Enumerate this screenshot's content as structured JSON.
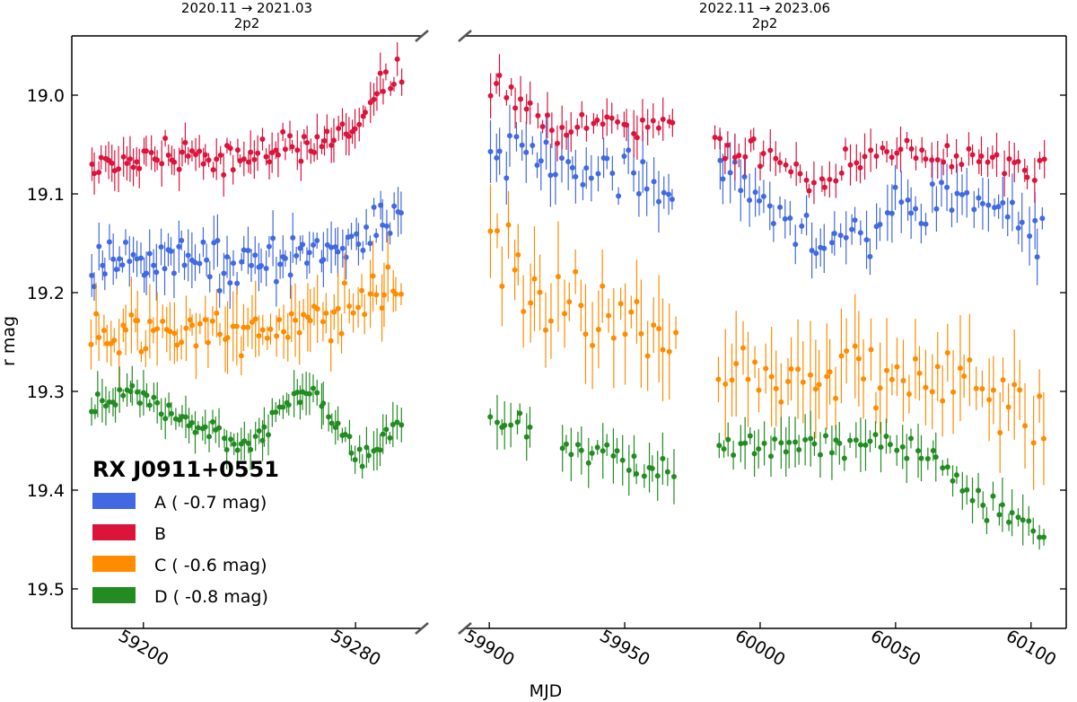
{
  "chart_data": {
    "type": "scatter",
    "ylabel": "r mag",
    "xlabel": "MJD",
    "ylim": [
      19.54,
      18.94
    ],
    "yticks": [
      19.0,
      19.1,
      19.2,
      19.3,
      19.4,
      19.5
    ],
    "ytick_labels": [
      "19.0",
      "19.1",
      "19.2",
      "19.3",
      "19.4",
      "19.5"
    ],
    "legend": {
      "title": "RX J0911+0551",
      "position": "lower-left",
      "entries": [
        {
          "label": "A ( -0.7 mag)",
          "color": "#4169e1"
        },
        {
          "label": "B",
          "color": "#dc143c"
        },
        {
          "label": "C ( -0.6 mag)",
          "color": "#ff8c00"
        },
        {
          "label": "D ( -0.8 mag)",
          "color": "#228b22"
        }
      ]
    },
    "panels": [
      {
        "name": "season-2020",
        "header": [
          "2020.11 → 2021.03",
          "2p2"
        ],
        "xlim": [
          59173,
          59305
        ],
        "xticks": [
          59200,
          59280
        ],
        "xtick_labels": [
          "59200",
          "59280"
        ],
        "series": [
          {
            "name": "A",
            "color": "#4169e1",
            "x_range": [
              59180,
              59298
            ],
            "n": 90,
            "base": [
              [
                59180,
                19.17
              ],
              [
                59210,
                19.165
              ],
              [
                59240,
                19.17
              ],
              [
                59270,
                19.16
              ],
              [
                59298,
                19.12
              ]
            ],
            "noise": 0.012,
            "err": 0.018
          },
          {
            "name": "B",
            "color": "#dc143c",
            "x_range": [
              59180,
              59298
            ],
            "n": 90,
            "base": [
              [
                59180,
                19.07
              ],
              [
                59210,
                19.06
              ],
              [
                59230,
                19.07
              ],
              [
                59260,
                19.05
              ],
              [
                59278,
                19.04
              ],
              [
                59288,
                19.0
              ],
              [
                59298,
                18.97
              ]
            ],
            "noise": 0.008,
            "err": 0.015
          },
          {
            "name": "C",
            "color": "#ff8c00",
            "x_range": [
              59180,
              59298
            ],
            "n": 80,
            "base": [
              [
                59180,
                19.24
              ],
              [
                59210,
                19.24
              ],
              [
                59240,
                19.24
              ],
              [
                59270,
                19.22
              ],
              [
                59298,
                19.2
              ]
            ],
            "noise": 0.012,
            "err": 0.025
          },
          {
            "name": "D",
            "color": "#228b22",
            "x_range": [
              59180,
              59298
            ],
            "n": 90,
            "base": [
              [
                59180,
                19.32
              ],
              [
                59195,
                19.3
              ],
              [
                59215,
                19.33
              ],
              [
                59240,
                19.355
              ],
              [
                59255,
                19.31
              ],
              [
                59265,
                19.3
              ],
              [
                59280,
                19.37
              ],
              [
                59290,
                19.35
              ],
              [
                59298,
                19.33
              ]
            ],
            "noise": 0.006,
            "err": 0.015
          }
        ]
      },
      {
        "name": "season-2022",
        "header": [
          "2022.11 → 2023.06",
          "2p2"
        ],
        "xlim": [
          59891,
          60113
        ],
        "xticks": [
          59900,
          59950,
          60000,
          60050,
          60100
        ],
        "xtick_labels": [
          "59900",
          "59950",
          "60000",
          "60050",
          "60100"
        ],
        "series": [
          {
            "name": "A",
            "color": "#4169e1",
            "x_range": [
              59900,
              60106
            ],
            "gaps": [
              [
                59969,
                59983
              ]
            ],
            "n": 110,
            "base": [
              [
                59900,
                19.05
              ],
              [
                59925,
                19.07
              ],
              [
                59950,
                19.08
              ],
              [
                59968,
                19.1
              ],
              [
                59984,
                19.08
              ],
              [
                60000,
                19.1
              ],
              [
                60020,
                19.14
              ],
              [
                60040,
                19.14
              ],
              [
                60050,
                19.11
              ],
              [
                60060,
                19.1
              ],
              [
                60080,
                19.1
              ],
              [
                60100,
                19.14
              ],
              [
                60106,
                19.13
              ]
            ],
            "noise": 0.012,
            "err": 0.02
          },
          {
            "name": "B",
            "color": "#dc143c",
            "x_range": [
              59900,
              60106
            ],
            "gaps": [
              [
                59969,
                59983
              ]
            ],
            "n": 110,
            "base": [
              [
                59900,
                18.98
              ],
              [
                59912,
                19.0
              ],
              [
                59925,
                19.04
              ],
              [
                59945,
                19.03
              ],
              [
                59968,
                19.03
              ],
              [
                59984,
                19.05
              ],
              [
                60005,
                19.06
              ],
              [
                60020,
                19.1
              ],
              [
                60035,
                19.06
              ],
              [
                60060,
                19.06
              ],
              [
                60080,
                19.06
              ],
              [
                60100,
                19.08
              ],
              [
                60106,
                19.07
              ]
            ],
            "noise": 0.008,
            "err": 0.015
          },
          {
            "name": "C",
            "color": "#ff8c00",
            "x_range": [
              59900,
              60106
            ],
            "gaps": [
              [
                59969,
                59983
              ]
            ],
            "n": 100,
            "base": [
              [
                59900,
                19.15
              ],
              [
                59915,
                19.19
              ],
              [
                59930,
                19.22
              ],
              [
                59950,
                19.23
              ],
              [
                59968,
                19.26
              ],
              [
                59984,
                19.28
              ],
              [
                60010,
                19.29
              ],
              [
                60040,
                19.28
              ],
              [
                60070,
                19.29
              ],
              [
                60090,
                19.32
              ],
              [
                60106,
                19.33
              ]
            ],
            "noise": 0.018,
            "err": 0.035
          },
          {
            "name": "D",
            "color": "#228b22",
            "x_range": [
              59900,
              60106
            ],
            "gaps": [
              [
                59917,
                59927
              ],
              [
                59969,
                59983
              ]
            ],
            "n": 110,
            "base": [
              [
                59900,
                19.335
              ],
              [
                59915,
                19.33
              ],
              [
                59928,
                19.355
              ],
              [
                59950,
                19.37
              ],
              [
                59968,
                19.39
              ],
              [
                59984,
                19.355
              ],
              [
                60020,
                19.355
              ],
              [
                60050,
                19.355
              ],
              [
                60065,
                19.37
              ],
              [
                60080,
                19.41
              ],
              [
                60095,
                19.43
              ],
              [
                60106,
                19.44
              ]
            ],
            "noise": 0.007,
            "err": 0.018
          }
        ]
      }
    ]
  }
}
